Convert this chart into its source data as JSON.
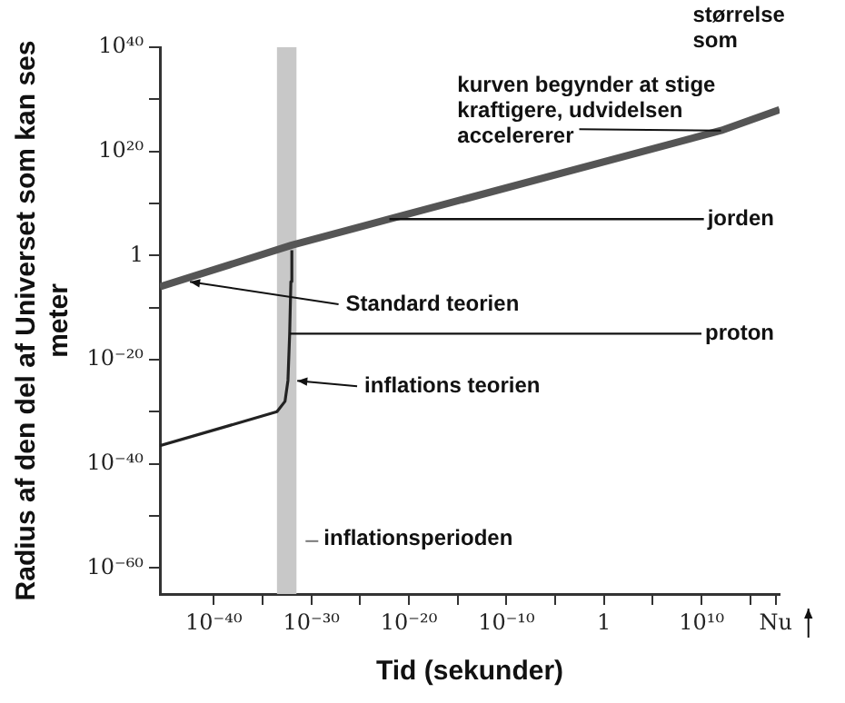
{
  "chart_data": {
    "type": "line",
    "xlabel": "Tid (sekunder)",
    "ylabel": "Radius af den del af Universet som kan ses meter",
    "xlim": [
      3e-46,
      1e+18
    ],
    "ylim": [
      1e-65,
      1e+40
    ],
    "log": "xy",
    "xticks": [
      {
        "value": 1e-40,
        "label": "10⁻⁴⁰"
      },
      {
        "value": 1e-35,
        "label": null
      },
      {
        "value": 1e-30,
        "label": "10⁻³⁰"
      },
      {
        "value": 1e-25,
        "label": null
      },
      {
        "value": 1e-20,
        "label": "10⁻²⁰"
      },
      {
        "value": 1e-15,
        "label": null
      },
      {
        "value": 1e-10,
        "label": "10⁻¹⁰"
      },
      {
        "value": 1e-05,
        "label": null
      },
      {
        "value": 1,
        "label": "1"
      },
      {
        "value": 100000.0,
        "label": null
      },
      {
        "value": 10000000000.0,
        "label": "10¹⁰"
      },
      {
        "value": 1000000000000000.0,
        "label": null
      },
      {
        "value": 4e+17,
        "label": "Nu"
      }
    ],
    "yticks": [
      {
        "value": 1e-60,
        "label": "10⁻⁶⁰"
      },
      {
        "value": 1e-50,
        "label": null
      },
      {
        "value": 1e-40,
        "label": "10⁻⁴⁰"
      },
      {
        "value": 1e-30,
        "label": null
      },
      {
        "value": 1e-20,
        "label": "10⁻²⁰"
      },
      {
        "value": 1e-10,
        "label": null
      },
      {
        "value": 1,
        "label": "1"
      },
      {
        "value": 10000000000.0,
        "label": null
      },
      {
        "value": 1e+20,
        "label": "10²⁰"
      },
      {
        "value": 1e+30,
        "label": null
      },
      {
        "value": 1e+40,
        "label": "10⁴⁰"
      }
    ],
    "series": [
      {
        "color": "#555555",
        "x": [
          3e-46,
          1e-32,
          1e-20,
          10000000000.0,
          1000000000000.0,
          1e+18
        ],
        "values": [
          1e-06,
          100.0,
          100000000.0,
          1e+23,
          1e+24,
          1e+28
        ]
      },
      {
        "color": "#222222",
        "x": [
          3e-46,
          3e-34,
          2e-33,
          4e-33,
          6e-33,
          8e-33,
          1e-32
        ],
        "values": [
          3e-37,
          1e-30,
          1e-28,
          1e-24,
          1e-15,
          1e-05,
          10.0
        ]
      }
    ],
    "bands": [
      {
        "axis": "x",
        "from": 3e-34,
        "to": 3e-32,
        "label": "inflationsperioden",
        "color": "#c8c8c8"
      }
    ],
    "ref_lines": [
      {
        "axis": "y",
        "value": 10000000.0,
        "label": "jorden"
      },
      {
        "axis": "y",
        "value": 1e-15,
        "label": "proton"
      }
    ],
    "annotations": [
      {
        "text": "Standard teorien",
        "x": 1e-43,
        "y": 0.0001
      },
      {
        "text": "inflations teorien",
        "x": 1e-32,
        "y": 1e-23
      },
      {
        "text": "kurven begynder at stige kraftigere, udvidelsen accelererer",
        "x": 1000000000000.0,
        "y": 1e+24
      },
      "størrelse som"
    ]
  }
}
